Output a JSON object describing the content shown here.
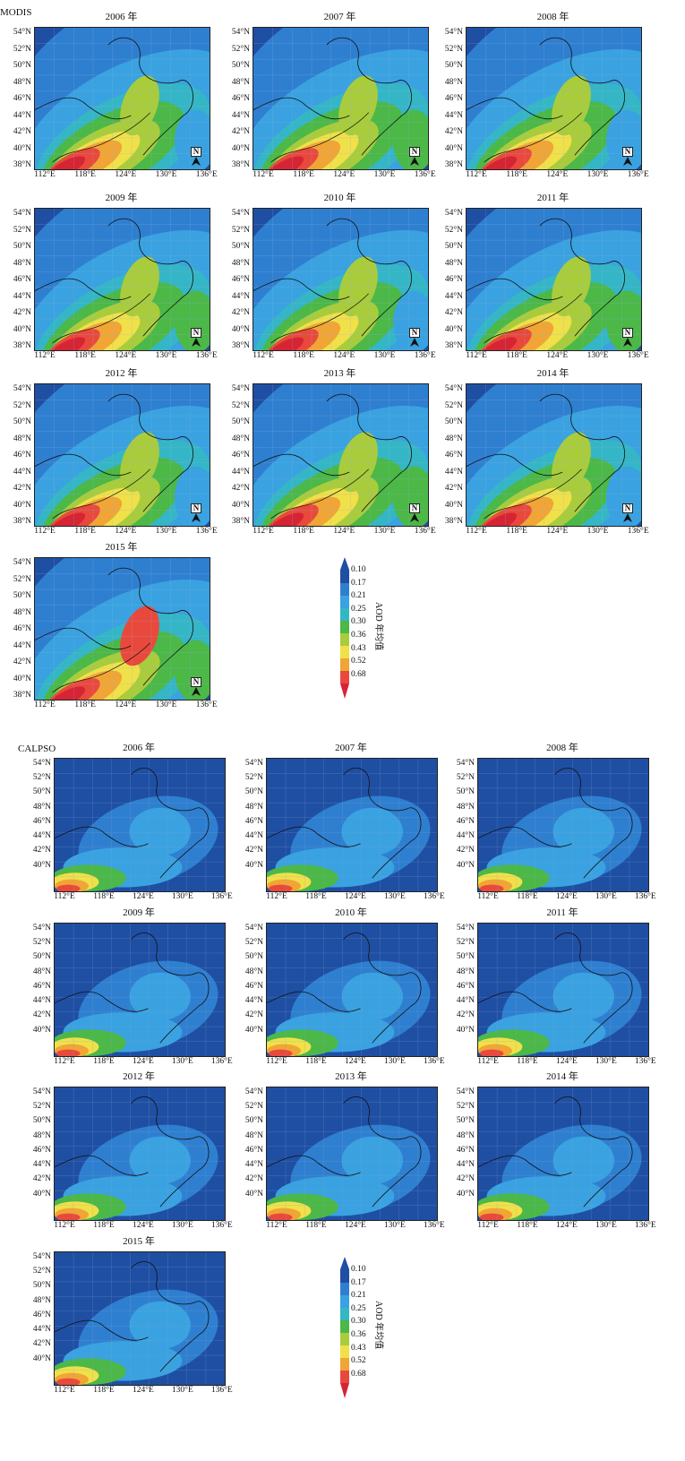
{
  "modis": {
    "label": "MODIS",
    "years": [
      "2006 年",
      "2007 年",
      "2008 年",
      "2009 年",
      "2010 年",
      "2011 年",
      "2012 年",
      "2013 年",
      "2014 年",
      "2015 年"
    ],
    "lat_ticks": [
      "54°N",
      "52°N",
      "50°N",
      "48°N",
      "46°N",
      "44°N",
      "42°N",
      "40°N",
      "38°N"
    ],
    "lon_ticks": [
      "112°E",
      "118°E",
      "124°E",
      "130°E",
      "136°E"
    ],
    "north_arrow": "N",
    "colorbar": {
      "title": "AOD 年均值",
      "ticks": [
        "0.10",
        "0.17",
        "0.21",
        "0.25",
        "0.30",
        "0.36",
        "0.43",
        "0.52",
        "0.68"
      ]
    }
  },
  "calipso": {
    "label": "CALPSO",
    "years": [
      "2006 年",
      "2007 年",
      "2008 年",
      "2009 年",
      "2010 年",
      "2011 年",
      "2012 年",
      "2013 年",
      "2014 年",
      "2015 年"
    ],
    "lat_ticks": [
      "54°N",
      "52°N",
      "50°N",
      "48°N",
      "46°N",
      "44°N",
      "42°N",
      "40°N"
    ],
    "lon_ticks": [
      "112°E",
      "118°E",
      "124°E",
      "130°E",
      "136°E"
    ],
    "colorbar": {
      "title": "AOD 年均值",
      "ticks": [
        "0.10",
        "0.17",
        "0.21",
        "0.25",
        "0.30",
        "0.36",
        "0.43",
        "0.52",
        "0.68"
      ]
    }
  },
  "colors": {
    "c1": "#1f4fa3",
    "c2": "#2f7fd0",
    "c3": "#3aa2e0",
    "c4": "#35b6c6",
    "c5": "#4cb847",
    "c6": "#a9cc3d",
    "c7": "#f0e04a",
    "c8": "#f0a536",
    "c9": "#e9493c",
    "c10": "#d52535"
  }
}
